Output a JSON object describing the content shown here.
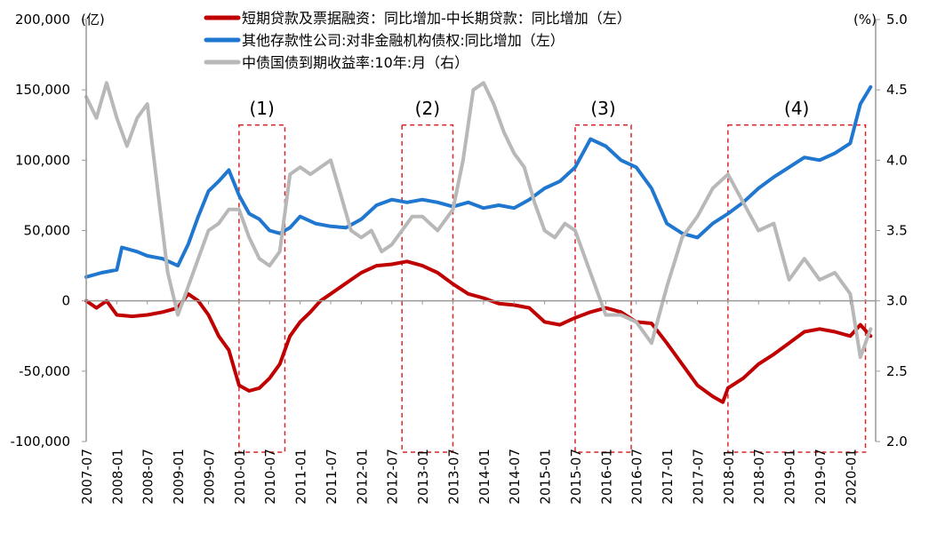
{
  "chart_data": {
    "type": "line",
    "left_unit": "(亿)",
    "right_unit": "(%)",
    "left_ticks": [
      "200,000",
      "150,000",
      "100,000",
      "50,000",
      "0",
      "-50,000",
      "-100,000"
    ],
    "left_tick_values": [
      200000,
      150000,
      100000,
      50000,
      0,
      -50000,
      -100000
    ],
    "right_ticks": [
      "5.0",
      "4.5",
      "4.0",
      "3.5",
      "3.0",
      "2.5",
      "2.0"
    ],
    "right_tick_values": [
      5.0,
      4.5,
      4.0,
      3.5,
      3.0,
      2.5,
      2.0
    ],
    "ylim_left": [
      -100000,
      200000
    ],
    "ylim_right": [
      2.0,
      5.0
    ],
    "x_labels": [
      "2007-07",
      "2008-01",
      "2008-07",
      "2009-01",
      "2009-07",
      "2010-01",
      "2010-07",
      "2011-01",
      "2011-07",
      "2012-01",
      "2012-07",
      "2013-01",
      "2013-07",
      "2014-01",
      "2014-07",
      "2015-01",
      "2015-07",
      "2016-01",
      "2016-07",
      "2017-01",
      "2017-07",
      "2018-01",
      "2018-07",
      "2019-01",
      "2019-07",
      "2020-01"
    ],
    "series": [
      {
        "name": "短期贷款及票据融资：同比增加-中长期贷款：同比增加（左）",
        "axis": "left",
        "color": "#C00000",
        "points": [
          [
            "2007-07",
            0
          ],
          [
            "2007-09",
            -5000
          ],
          [
            "2007-11",
            0
          ],
          [
            "2008-01",
            -10000
          ],
          [
            "2008-04",
            -11000
          ],
          [
            "2008-07",
            -10000
          ],
          [
            "2008-10",
            -8000
          ],
          [
            "2009-01",
            -5000
          ],
          [
            "2009-03",
            5000
          ],
          [
            "2009-05",
            0
          ],
          [
            "2009-07",
            -10000
          ],
          [
            "2009-09",
            -25000
          ],
          [
            "2009-11",
            -35000
          ],
          [
            "2010-01",
            -60000
          ],
          [
            "2010-03",
            -64000
          ],
          [
            "2010-05",
            -62000
          ],
          [
            "2010-07",
            -55000
          ],
          [
            "2010-09",
            -45000
          ],
          [
            "2010-11",
            -25000
          ],
          [
            "2011-01",
            -15000
          ],
          [
            "2011-03",
            -8000
          ],
          [
            "2011-05",
            0
          ],
          [
            "2011-07",
            5000
          ],
          [
            "2011-09",
            10000
          ],
          [
            "2011-11",
            15000
          ],
          [
            "2012-01",
            20000
          ],
          [
            "2012-04",
            25000
          ],
          [
            "2012-07",
            26000
          ],
          [
            "2012-10",
            28000
          ],
          [
            "2013-01",
            25000
          ],
          [
            "2013-04",
            20000
          ],
          [
            "2013-07",
            12000
          ],
          [
            "2013-10",
            5000
          ],
          [
            "2014-01",
            2000
          ],
          [
            "2014-04",
            -2000
          ],
          [
            "2014-07",
            -3000
          ],
          [
            "2014-10",
            -5000
          ],
          [
            "2015-01",
            -15000
          ],
          [
            "2015-04",
            -17000
          ],
          [
            "2015-07",
            -12000
          ],
          [
            "2015-10",
            -8000
          ],
          [
            "2016-01",
            -5000
          ],
          [
            "2016-04",
            -8000
          ],
          [
            "2016-07",
            -15000
          ],
          [
            "2016-10",
            -16000
          ],
          [
            "2017-01",
            -30000
          ],
          [
            "2017-04",
            -45000
          ],
          [
            "2017-07",
            -60000
          ],
          [
            "2017-10",
            -68000
          ],
          [
            "2017-12",
            -72000
          ],
          [
            "2018-01",
            -62000
          ],
          [
            "2018-04",
            -55000
          ],
          [
            "2018-07",
            -45000
          ],
          [
            "2018-10",
            -38000
          ],
          [
            "2019-01",
            -30000
          ],
          [
            "2019-04",
            -22000
          ],
          [
            "2019-07",
            -20000
          ],
          [
            "2019-10",
            -22000
          ],
          [
            "2020-01",
            -25000
          ],
          [
            "2020-03",
            -17000
          ],
          [
            "2020-05",
            -25000
          ]
        ]
      },
      {
        "name": "其他存款性公司:对非金融机构债权:同比增加（左）",
        "axis": "left",
        "color": "#1F77D0",
        "points": [
          [
            "2007-07",
            17000
          ],
          [
            "2007-10",
            20000
          ],
          [
            "2008-01",
            22000
          ],
          [
            "2008-02",
            38000
          ],
          [
            "2008-05",
            35000
          ],
          [
            "2008-07",
            32000
          ],
          [
            "2008-10",
            30000
          ],
          [
            "2009-01",
            25000
          ],
          [
            "2009-03",
            40000
          ],
          [
            "2009-05",
            60000
          ],
          [
            "2009-07",
            78000
          ],
          [
            "2009-09",
            85000
          ],
          [
            "2009-11",
            93000
          ],
          [
            "2010-01",
            75000
          ],
          [
            "2010-03",
            62000
          ],
          [
            "2010-05",
            58000
          ],
          [
            "2010-07",
            50000
          ],
          [
            "2010-09",
            48000
          ],
          [
            "2010-11",
            52000
          ],
          [
            "2011-01",
            60000
          ],
          [
            "2011-04",
            55000
          ],
          [
            "2011-07",
            53000
          ],
          [
            "2011-10",
            52000
          ],
          [
            "2012-01",
            58000
          ],
          [
            "2012-04",
            68000
          ],
          [
            "2012-07",
            72000
          ],
          [
            "2012-10",
            70000
          ],
          [
            "2013-01",
            72000
          ],
          [
            "2013-04",
            70000
          ],
          [
            "2013-07",
            67000
          ],
          [
            "2013-10",
            70000
          ],
          [
            "2014-01",
            66000
          ],
          [
            "2014-04",
            68000
          ],
          [
            "2014-07",
            66000
          ],
          [
            "2014-10",
            72000
          ],
          [
            "2015-01",
            80000
          ],
          [
            "2015-04",
            85000
          ],
          [
            "2015-07",
            95000
          ],
          [
            "2015-10",
            115000
          ],
          [
            "2016-01",
            110000
          ],
          [
            "2016-04",
            100000
          ],
          [
            "2016-07",
            95000
          ],
          [
            "2016-10",
            80000
          ],
          [
            "2017-01",
            55000
          ],
          [
            "2017-04",
            48000
          ],
          [
            "2017-07",
            45000
          ],
          [
            "2017-10",
            55000
          ],
          [
            "2018-01",
            62000
          ],
          [
            "2018-04",
            70000
          ],
          [
            "2018-07",
            80000
          ],
          [
            "2018-10",
            88000
          ],
          [
            "2019-01",
            95000
          ],
          [
            "2019-04",
            102000
          ],
          [
            "2019-07",
            100000
          ],
          [
            "2019-10",
            105000
          ],
          [
            "2020-01",
            112000
          ],
          [
            "2020-03",
            140000
          ],
          [
            "2020-05",
            152000
          ]
        ]
      },
      {
        "name": "中债国债到期收益率:10年:月（右）",
        "axis": "right",
        "color": "#B8B8B8",
        "points": [
          [
            "2007-07",
            4.45
          ],
          [
            "2007-09",
            4.3
          ],
          [
            "2007-11",
            4.55
          ],
          [
            "2008-01",
            4.3
          ],
          [
            "2008-03",
            4.1
          ],
          [
            "2008-05",
            4.3
          ],
          [
            "2008-07",
            4.4
          ],
          [
            "2008-09",
            3.8
          ],
          [
            "2008-11",
            3.2
          ],
          [
            "2009-01",
            2.9
          ],
          [
            "2009-03",
            3.1
          ],
          [
            "2009-05",
            3.3
          ],
          [
            "2009-07",
            3.5
          ],
          [
            "2009-09",
            3.55
          ],
          [
            "2009-11",
            3.65
          ],
          [
            "2010-01",
            3.65
          ],
          [
            "2010-03",
            3.45
          ],
          [
            "2010-05",
            3.3
          ],
          [
            "2010-07",
            3.25
          ],
          [
            "2010-09",
            3.35
          ],
          [
            "2010-11",
            3.9
          ],
          [
            "2011-01",
            3.95
          ],
          [
            "2011-03",
            3.9
          ],
          [
            "2011-05",
            3.95
          ],
          [
            "2011-07",
            4.0
          ],
          [
            "2011-09",
            3.75
          ],
          [
            "2011-11",
            3.5
          ],
          [
            "2012-01",
            3.45
          ],
          [
            "2012-03",
            3.5
          ],
          [
            "2012-05",
            3.35
          ],
          [
            "2012-07",
            3.4
          ],
          [
            "2012-09",
            3.5
          ],
          [
            "2012-11",
            3.6
          ],
          [
            "2013-01",
            3.6
          ],
          [
            "2013-04",
            3.5
          ],
          [
            "2013-07",
            3.65
          ],
          [
            "2013-09",
            4.0
          ],
          [
            "2013-11",
            4.5
          ],
          [
            "2014-01",
            4.55
          ],
          [
            "2014-03",
            4.4
          ],
          [
            "2014-05",
            4.2
          ],
          [
            "2014-07",
            4.05
          ],
          [
            "2014-09",
            3.95
          ],
          [
            "2014-11",
            3.7
          ],
          [
            "2015-01",
            3.5
          ],
          [
            "2015-03",
            3.45
          ],
          [
            "2015-05",
            3.55
          ],
          [
            "2015-07",
            3.5
          ],
          [
            "2015-09",
            3.3
          ],
          [
            "2015-11",
            3.1
          ],
          [
            "2016-01",
            2.9
          ],
          [
            "2016-04",
            2.9
          ],
          [
            "2016-07",
            2.85
          ],
          [
            "2016-10",
            2.7
          ],
          [
            "2017-01",
            3.1
          ],
          [
            "2017-04",
            3.45
          ],
          [
            "2017-07",
            3.6
          ],
          [
            "2017-10",
            3.8
          ],
          [
            "2018-01",
            3.9
          ],
          [
            "2018-04",
            3.7
          ],
          [
            "2018-07",
            3.5
          ],
          [
            "2018-10",
            3.55
          ],
          [
            "2019-01",
            3.15
          ],
          [
            "2019-04",
            3.3
          ],
          [
            "2019-07",
            3.15
          ],
          [
            "2019-10",
            3.2
          ],
          [
            "2020-01",
            3.05
          ],
          [
            "2020-03",
            2.6
          ],
          [
            "2020-05",
            2.8
          ]
        ]
      }
    ],
    "boxes": [
      {
        "label": "(1)",
        "from": "2010-01",
        "to": "2010-10",
        "ymax": 125000
      },
      {
        "label": "(2)",
        "from": "2012-09",
        "to": "2013-07",
        "ymax": 125000
      },
      {
        "label": "(3)",
        "from": "2015-07",
        "to": "2016-06",
        "ymax": 125000
      },
      {
        "label": "(4)",
        "from": "2018-01",
        "to": "2020-04",
        "ymax": 125000
      }
    ]
  }
}
